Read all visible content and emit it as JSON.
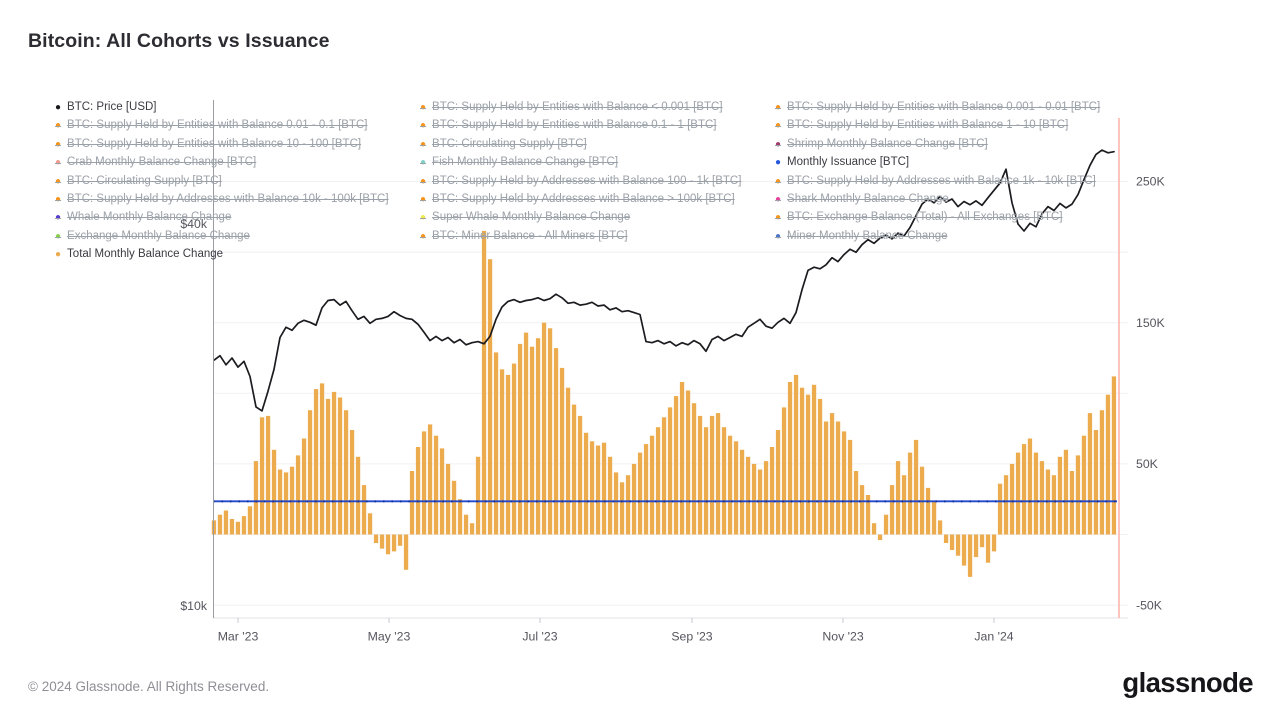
{
  "header": {
    "title": "Bitcoin: All Cohorts vs Issuance"
  },
  "footer": {
    "copyright": "© 2024 Glassnode. All Rights Reserved.",
    "brand": "glassnode"
  },
  "colors": {
    "bar": "#ecab4d",
    "price_line": "#1c1c20",
    "issuance_line": "#2148cc",
    "grid": "#f1f1f5",
    "axis_line": "#9b9ba3",
    "bottom_line": "#e3e3e9",
    "tick": "#c9c9d1",
    "label": "#55555e",
    "last_point_marker": "#ffb1a5"
  },
  "legend": {
    "columns": [
      [
        {
          "label": "BTC: Price [USD]",
          "color": "#17171c",
          "active": true
        },
        {
          "label": "BTC: Supply Held by Entities with Balance 0.01 - 0.1 [BTC]",
          "color": "#f7941d",
          "active": false
        },
        {
          "label": "BTC: Supply Held by Entities with Balance 10 - 100 [BTC]",
          "color": "#f7941d",
          "active": false
        },
        {
          "label": "Crab Monthly Balance Change [BTC]",
          "color": "#f09a8d",
          "active": false
        },
        {
          "label": "BTC: Circulating Supply [BTC]",
          "color": "#f7941d",
          "active": false
        },
        {
          "label": "BTC: Supply Held by Addresses with Balance 10k - 100k [BTC]",
          "color": "#f7941d",
          "active": false
        },
        {
          "label": "Whale Monthly Balance Change",
          "color": "#5a3bd0",
          "active": false
        },
        {
          "label": "Exchange Monthly Balance Change",
          "color": "#86d24a",
          "active": false
        },
        {
          "label": "Total Monthly Balance Change",
          "color": "#ecab4d",
          "active": true
        }
      ],
      [
        {
          "label": "BTC: Supply Held by Entities with Balance < 0.001 [BTC]",
          "color": "#f7941d",
          "active": false
        },
        {
          "label": "BTC: Supply Held by Entities with Balance 0.1 - 1 [BTC]",
          "color": "#f7941d",
          "active": false
        },
        {
          "label": "BTC: Circulating Supply [BTC]",
          "color": "#f7941d",
          "active": false
        },
        {
          "label": "Fish Monthly Balance Change [BTC]",
          "color": "#7fd1c5",
          "active": false
        },
        {
          "label": "BTC: Supply Held by Addresses with Balance 100 - 1k [BTC]",
          "color": "#f7941d",
          "active": false
        },
        {
          "label": "BTC: Supply Held by Addresses with Balance > 100k [BTC]",
          "color": "#f7941d",
          "active": false
        },
        {
          "label": "Super Whale Monthly Balance Change",
          "color": "#ece94e",
          "active": false
        },
        {
          "label": "BTC: Miner Balance - All Miners [BTC]",
          "color": "#f7941d",
          "active": false
        }
      ],
      [
        {
          "label": "BTC: Supply Held by Entities with Balance 0.001 - 0.01 [BTC]",
          "color": "#f7941d",
          "active": false
        },
        {
          "label": "BTC: Supply Held by Entities with Balance 1 - 10 [BTC]",
          "color": "#f7941d",
          "active": false
        },
        {
          "label": "Shrimp Monthly Balance Change [BTC]",
          "color": "#a13d6d",
          "active": false
        },
        {
          "label": "Monthly Issuance [BTC]",
          "color": "#2458dd",
          "active": true
        },
        {
          "label": "BTC: Supply Held by Addresses with Balance 1k - 10k [BTC]",
          "color": "#f7941d",
          "active": false
        },
        {
          "label": "Shark Monthly Balance Change",
          "color": "#e5439b",
          "active": false
        },
        {
          "label": "BTC: Exchange Balance (Total) - All Exchanges [BTC]",
          "color": "#f7941d",
          "active": false
        },
        {
          "label": "Miner Monthly Balance Change",
          "color": "#4b76ca",
          "active": false
        }
      ]
    ]
  },
  "chart_data": {
    "type": "mixed",
    "title": "Bitcoin: All Cohorts vs Issuance",
    "x_axis": {
      "tick_labels": [
        "Mar '23",
        "May '23",
        "Jul '23",
        "Sep '23",
        "Nov '23",
        "Jan '24"
      ]
    },
    "right_axis": {
      "units": "BTC (thousands)",
      "ticks": [
        {
          "label": "250K",
          "value": 250
        },
        {
          "label": "150K",
          "value": 150
        },
        {
          "label": "50K",
          "value": 50
        },
        {
          "label": "-50K",
          "value": -50
        }
      ],
      "grid_values": [
        250,
        200,
        150,
        100,
        50,
        0,
        -50
      ],
      "range_k": [
        -80,
        295
      ]
    },
    "left_axis": {
      "units": "USD",
      "scale": "log",
      "ticks": [
        {
          "label": "$40k",
          "value": 40
        },
        {
          "label": "$10k",
          "value": 10
        }
      ]
    },
    "series": [
      {
        "name": "BTC: Price [USD]",
        "type": "line",
        "axis": "left",
        "color": "#1c1c20",
        "values_usd_k": [
          24.4,
          24.8,
          24.0,
          24.6,
          23.8,
          24.3,
          23.0,
          20.6,
          20.3,
          21.8,
          23.6,
          26.5,
          27.5,
          27.2,
          27.9,
          28.2,
          28.0,
          27.7,
          29.5,
          30.3,
          30.4,
          29.8,
          30.2,
          29.2,
          28.3,
          28.6,
          27.9,
          28.3,
          28.4,
          28.6,
          29.1,
          28.7,
          28.4,
          28.3,
          27.8,
          27.0,
          26.2,
          26.6,
          26.2,
          26.5,
          26.0,
          26.3,
          25.8,
          26.0,
          26.1,
          25.9,
          26.6,
          28.3,
          29.6,
          30.2,
          30.4,
          30.1,
          30.3,
          30.4,
          30.6,
          30.3,
          30.5,
          31.0,
          30.6,
          30.0,
          30.1,
          29.8,
          29.9,
          30.1,
          29.7,
          29.8,
          29.3,
          29.5,
          29.1,
          29.2,
          29.0,
          28.8,
          26.1,
          26.0,
          26.2,
          25.9,
          26.1,
          25.7,
          26.0,
          25.8,
          26.2,
          25.9,
          25.2,
          26.3,
          26.6,
          26.2,
          26.5,
          26.8,
          26.6,
          27.5,
          27.9,
          28.3,
          27.6,
          27.4,
          28.0,
          28.4,
          27.9,
          29.0,
          31.5,
          33.8,
          34.2,
          34.0,
          34.5,
          35.4,
          34.9,
          35.8,
          36.5,
          36.1,
          37.1,
          37.8,
          37.3,
          38.0,
          38.4,
          37.9,
          38.7,
          38.3,
          39.5,
          41.2,
          43.0,
          43.8,
          43.2,
          44.2,
          43.3,
          43.8,
          42.6,
          43.4,
          42.9,
          43.5,
          42.8,
          44.0,
          45.2,
          46.4,
          48.8,
          43.2,
          40.0,
          39.0,
          40.1,
          39.6,
          41.5,
          42.6,
          42.0,
          43.1,
          42.4,
          43.0,
          44.5,
          47.0,
          49.5,
          51.5,
          52.3,
          51.8,
          52.0
        ]
      },
      {
        "name": "Monthly Issuance [BTC]",
        "type": "line",
        "axis": "right",
        "color": "#2148cc",
        "flat_value_k": 23.5
      },
      {
        "name": "Total Monthly Balance Change",
        "type": "bar",
        "axis": "right",
        "color": "#ecab4d",
        "values_k": [
          10,
          14,
          17,
          11,
          9,
          13,
          20,
          52,
          83,
          84,
          60,
          46,
          44,
          48,
          56,
          68,
          88,
          103,
          107,
          96,
          101,
          97,
          88,
          74,
          55,
          35,
          15,
          -6,
          -10,
          -14,
          -12,
          -8,
          -25,
          45,
          62,
          73,
          78,
          70,
          61,
          50,
          38,
          25,
          14,
          8,
          55,
          215,
          195,
          129,
          117,
          113,
          121,
          135,
          143,
          133,
          139,
          150,
          146,
          132,
          118,
          104,
          92,
          84,
          72,
          66,
          63,
          65,
          55,
          44,
          37,
          42,
          50,
          58,
          64,
          70,
          76,
          83,
          90,
          98,
          108,
          102,
          93,
          84,
          76,
          84,
          86,
          76,
          70,
          66,
          60,
          55,
          50,
          46,
          52,
          62,
          74,
          90,
          108,
          113,
          104,
          99,
          106,
          96,
          80,
          86,
          80,
          73,
          67,
          45,
          35,
          28,
          8,
          -4,
          14,
          35,
          52,
          42,
          58,
          67,
          48,
          33,
          23,
          10,
          -6,
          -11,
          -15,
          -22,
          -30,
          -16,
          -9,
          -20,
          -12,
          36,
          42,
          50,
          58,
          64,
          68,
          58,
          52,
          46,
          42,
          55,
          60,
          45,
          56,
          70,
          86,
          74,
          88,
          99,
          112
        ]
      }
    ]
  }
}
